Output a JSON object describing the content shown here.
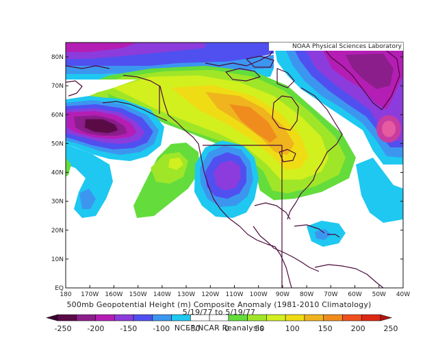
{
  "map": {
    "credit": "NOAA Physical Sciences Laboratory",
    "title": "500mb Geopotential Height (m) Composite Anomaly (1981-2010 Climatology)",
    "date_range": "5/19/77 to 5/19/77",
    "source": "NCEP/NCAR Reanalysis",
    "lon_ticks": [
      "180",
      "170W",
      "160W",
      "150W",
      "140W",
      "130W",
      "120W",
      "110W",
      "100W",
      "90W",
      "80W",
      "70W",
      "60W",
      "50W",
      "40W"
    ],
    "lat_ticks": [
      "EQ",
      "10N",
      "20N",
      "30N",
      "40N",
      "50N",
      "60N",
      "70N",
      "80N"
    ],
    "colorbar_ticks": [
      "-250",
      "-200",
      "-150",
      "-100",
      "-50",
      "0",
      "50",
      "100",
      "150",
      "200",
      "250"
    ],
    "colorbar_colors": [
      "#5a0a46",
      "#8c1e8c",
      "#b41eb4",
      "#8c3cdc",
      "#5050f0",
      "#3c96f0",
      "#1ec8f0",
      "#ffffff",
      "#ffffff",
      "#64dc3c",
      "#a0e628",
      "#d2f01e",
      "#f0dc14",
      "#f0b41e",
      "#f08c1e",
      "#f0501e",
      "#dc2814"
    ]
  }
}
